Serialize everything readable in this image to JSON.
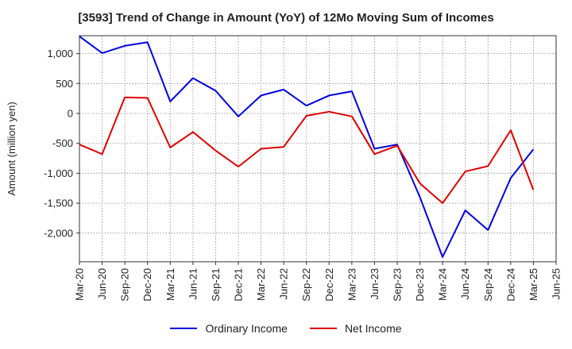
{
  "chart_data": {
    "type": "line",
    "title": "[3593]  Trend of Change in Amount (YoY) of 12Mo Moving Sum of Incomes",
    "xlabel": "",
    "ylabel": "Amount (million yen)",
    "categories": [
      "Mar-20",
      "Jun-20",
      "Sep-20",
      "Dec-20",
      "Mar-21",
      "Jun-21",
      "Sep-21",
      "Dec-21",
      "Mar-22",
      "Jun-22",
      "Sep-22",
      "Dec-22",
      "Mar-23",
      "Jun-23",
      "Sep-23",
      "Dec-23",
      "Mar-24",
      "Jun-24",
      "Sep-24",
      "Dec-24",
      "Mar-25",
      "Jun-25"
    ],
    "ylim": [
      -2480,
      1300
    ],
    "yticks": [
      1000,
      500,
      0,
      -500,
      -1000,
      -1500,
      -2000
    ],
    "ytick_labels": [
      "1,000",
      "500",
      "0",
      "-500",
      "-1,000",
      "-1,500",
      "-2,000"
    ],
    "grid": true,
    "legend_position": "bottom",
    "series": [
      {
        "name": "Ordinary Income",
        "color": "#0000dd",
        "values": [
          1290,
          1010,
          1130,
          1190,
          200,
          590,
          380,
          -50,
          300,
          400,
          130,
          300,
          370,
          -590,
          -520,
          -1400,
          -2400,
          -1620,
          -1950,
          -1080,
          -600,
          null
        ]
      },
      {
        "name": "Net Income",
        "color": "#dd0000",
        "values": [
          -520,
          -680,
          270,
          260,
          -570,
          -310,
          -620,
          -890,
          -590,
          -560,
          -40,
          30,
          -50,
          -680,
          -540,
          -1170,
          -1500,
          -970,
          -880,
          -280,
          -1280,
          null
        ]
      }
    ]
  }
}
